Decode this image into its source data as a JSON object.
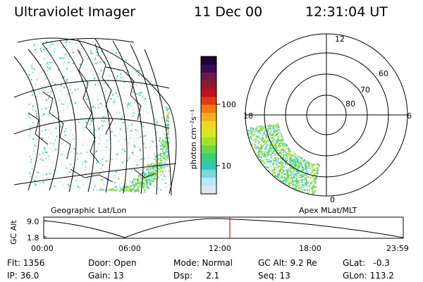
{
  "header": {
    "instrument": "Ultraviolet Imager",
    "date": "11 Dec 00",
    "time": "12:31:04 UT"
  },
  "left_panel": {
    "caption": "Geographic Lat/Lon"
  },
  "colorbar": {
    "units_label": "photon cm⁻²s⁻¹",
    "tick_labels": [
      "100",
      "10"
    ],
    "colors": [
      "#1a0033",
      "#3a0a55",
      "#6b1a4a",
      "#8b1a2a",
      "#c01020",
      "#e03a10",
      "#f27a10",
      "#f5b020",
      "#f0d820",
      "#d8e820",
      "#a8e030",
      "#6ad848",
      "#38d080",
      "#30c8b0",
      "#7ad8e0",
      "#b8e8f0",
      "#dce8f0"
    ]
  },
  "right_panel": {
    "caption": "Apex MLat/MLT",
    "mlt_labels": [
      "12",
      "18",
      "6",
      "0"
    ],
    "mlat_labels": [
      "60",
      "70",
      "80"
    ]
  },
  "timeline": {
    "y_axis_label": "GC Alt",
    "y_tick_labels": [
      "9.0",
      "1.8"
    ],
    "x_tick_labels": [
      "00:00",
      "06:00",
      "12:00",
      "18:00",
      "23:59"
    ],
    "marker_time": "12:31",
    "marker_color": "#e02020"
  },
  "status": {
    "flt": "Flt: 1356",
    "ip": "IP: 36.0",
    "door": "Door: Open",
    "gain": "Gain: 13",
    "mode": "Mode: Normal",
    "dsp": "Dsp:     2.1",
    "gc_alt": "GC Alt: 9.2 Re",
    "seq": "Seq: 13",
    "glat": "GLat:   -0.3",
    "glon": "GLon: 113.2"
  }
}
